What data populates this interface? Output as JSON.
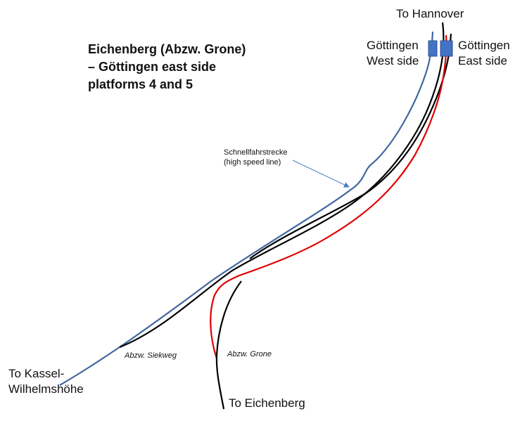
{
  "title": {
    "line1": "Eichenberg (Abzw. Grone)",
    "line2": "– Göttingen east side",
    "line3": "platforms 4 and 5"
  },
  "labels": {
    "to_hannover": "To Hannover",
    "goettingen_west": {
      "line1": "Göttingen",
      "line2": "West side"
    },
    "goettingen_east": {
      "line1": "Göttingen",
      "line2": "East side"
    },
    "high_speed": {
      "line1": "Schnellfahrstrecke",
      "line2": "(high speed line)"
    },
    "abzw_siekweg": "Abzw. Siekweg",
    "abzw_grone": "Abzw. Grone",
    "to_kassel": {
      "line1": "To Kassel-",
      "line2": "Wilhelmshöhe"
    },
    "to_eichenberg": "To Eichenberg"
  },
  "colors": {
    "high_speed_line": "#41679e",
    "track": "#000000",
    "route": "#e00000",
    "platform": "#4472c4"
  }
}
